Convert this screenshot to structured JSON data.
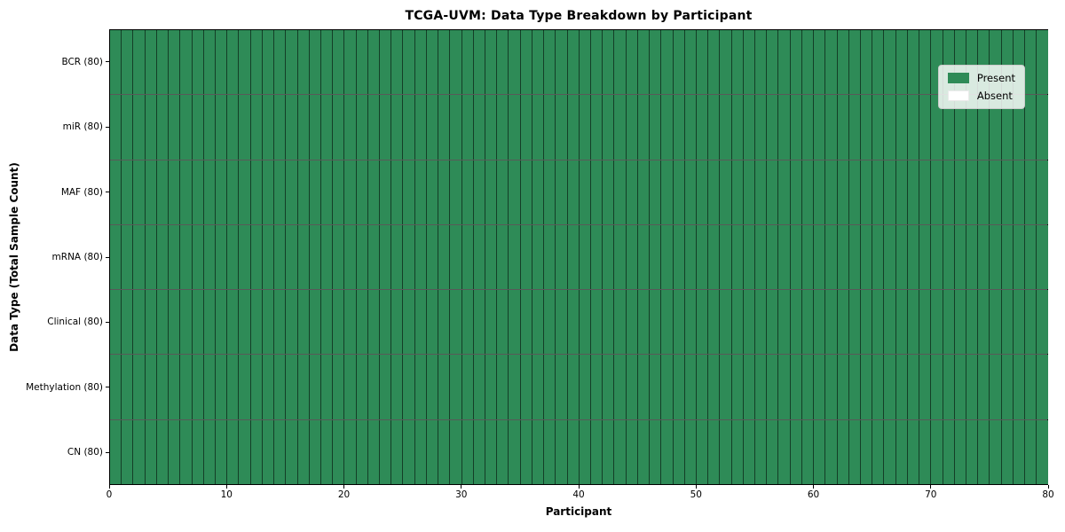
{
  "figure": {
    "background": "#ffffff"
  },
  "chart_data": {
    "type": "heatmap",
    "title": "TCGA-UVM: Data Type Breakdown by Participant",
    "xlabel": "Participant",
    "ylabel": "Data Type (Total Sample Count)",
    "xlim": [
      0,
      80
    ],
    "x_ticks": [
      0,
      10,
      20,
      30,
      40,
      50,
      60,
      70,
      80
    ],
    "columns": 80,
    "rows": [
      {
        "label": "BCR (80)",
        "present_count": 80
      },
      {
        "label": "miR (80)",
        "present_count": 80
      },
      {
        "label": "MAF (80)",
        "present_count": 80
      },
      {
        "label": "mRNA (80)",
        "present_count": 80
      },
      {
        "label": "Clinical (80)",
        "present_count": 80
      },
      {
        "label": "Methylation (80)",
        "present_count": 80
      },
      {
        "label": "CN (80)",
        "present_count": 80
      }
    ],
    "legend": {
      "position": "upper right",
      "entries": [
        {
          "label": "Present",
          "color": "#2e8b57"
        },
        {
          "label": "Absent",
          "color": "#ffffff"
        }
      ]
    },
    "colors": {
      "present": "#2e8b57",
      "absent": "#ffffff",
      "cell_border": "rgba(0,0,0,0.55)",
      "axis": "#000000"
    },
    "grid": false
  }
}
